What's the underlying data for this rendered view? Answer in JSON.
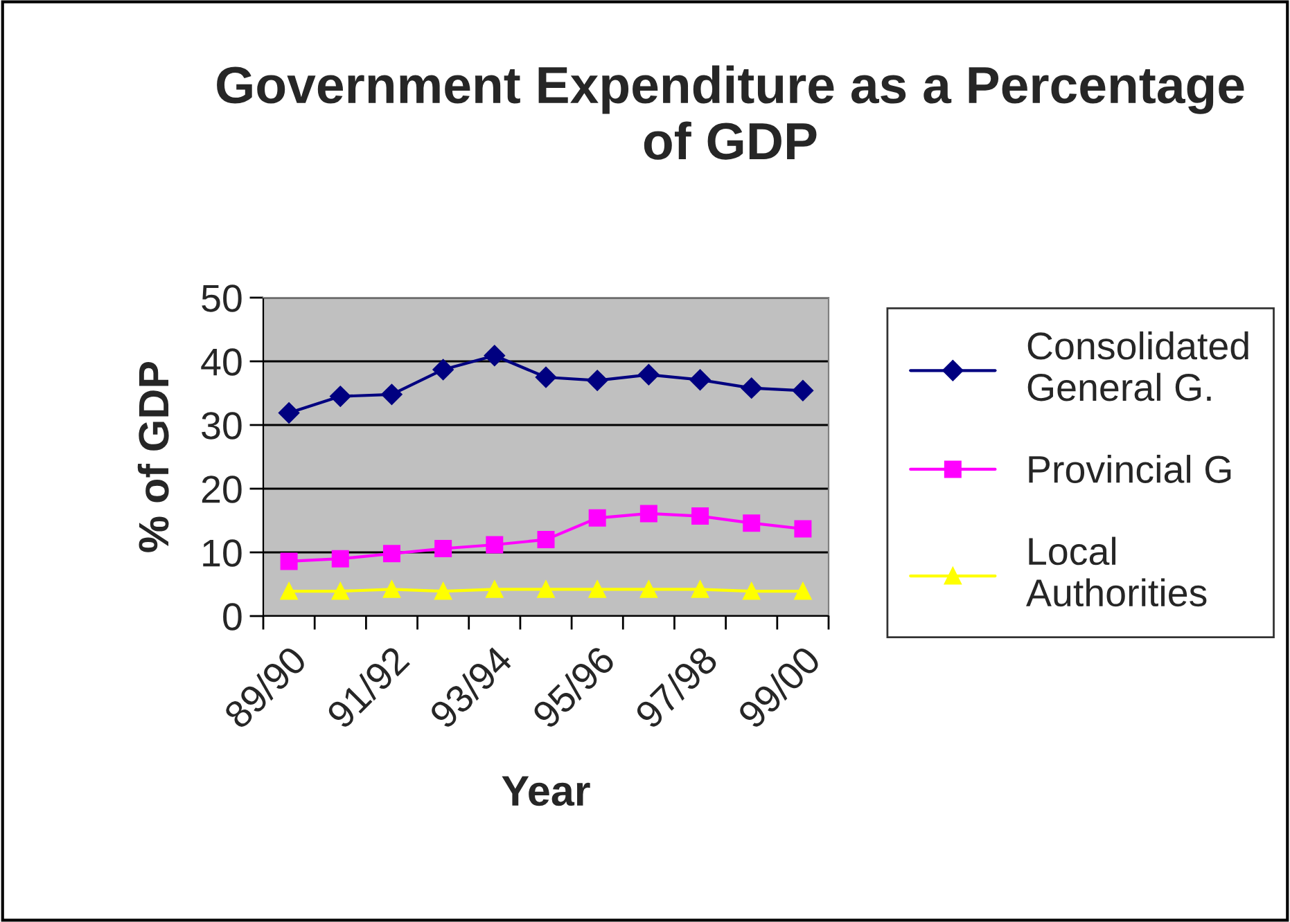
{
  "chart_data": {
    "type": "line",
    "title": "Government Expenditure as a Percentage of GDP",
    "xlabel": "Year",
    "ylabel": "% of GDP",
    "categories": [
      "89/90",
      null,
      "91/92",
      null,
      "93/94",
      null,
      "95/96",
      null,
      "97/98",
      null,
      "99/00"
    ],
    "series": [
      {
        "name": "Consolidated General G.",
        "color": "#000080",
        "marker": "diamond",
        "values": [
          31.9,
          34.5,
          34.8,
          38.7,
          40.9,
          37.5,
          37.0,
          37.9,
          37.1,
          35.8,
          35.4
        ]
      },
      {
        "name": "Provincial G",
        "color": "#ff00ff",
        "marker": "square",
        "values": [
          8.6,
          9.0,
          9.8,
          10.6,
          11.2,
          12.0,
          15.4,
          16.1,
          15.7,
          14.6,
          13.7
        ]
      },
      {
        "name": "Local Authorities",
        "color": "#ffff00",
        "marker": "triangle",
        "values": [
          3.9,
          3.9,
          4.2,
          3.9,
          4.2,
          4.2,
          4.2,
          4.2,
          4.2,
          3.9,
          3.9
        ]
      }
    ],
    "ylim": [
      0,
      50
    ],
    "yticks": [
      0,
      10,
      20,
      30,
      40,
      50
    ],
    "grid": "y",
    "legend": "right"
  }
}
